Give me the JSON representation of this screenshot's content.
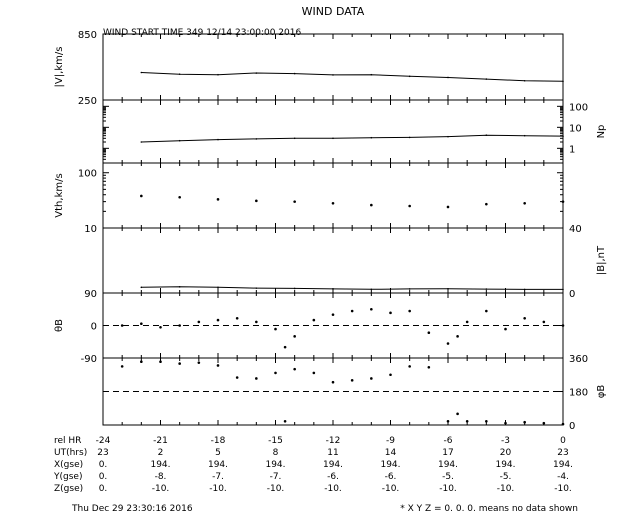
{
  "title": "WIND DATA",
  "start_label": "WIND START TIME 349 12/14 23:00:00 2016",
  "footer_date": "Thu Dec 29 23:30:16 2016",
  "footer_note": "* X Y Z = 0. 0. 0. means no data shown",
  "table": {
    "rows": [
      {
        "label": "rel HR",
        "values": [
          "-24",
          "-21",
          "-18",
          "-15",
          "-12",
          "-9",
          "-6",
          "-3",
          "0"
        ]
      },
      {
        "label": "UT(hrs)",
        "values": [
          "23",
          "2",
          "5",
          "8",
          "11",
          "14",
          "17",
          "20",
          "23"
        ]
      },
      {
        "label": "X(gse)",
        "values": [
          "0.",
          "194.",
          "194.",
          "194.",
          "194.",
          "194.",
          "194.",
          "194.",
          "194."
        ]
      },
      {
        "label": "Y(gse)",
        "values": [
          "0.",
          "-8.",
          "-7.",
          "-7.",
          "-6.",
          "-6.",
          "-5.",
          "-5.",
          "-4."
        ]
      },
      {
        "label": "Z(gse)",
        "values": [
          "0.",
          "-10.",
          "-10.",
          "-10.",
          "-10.",
          "-10.",
          "-10.",
          "-10.",
          "-10."
        ]
      }
    ]
  },
  "chart_data": [
    {
      "type": "line",
      "panel": "speed",
      "ylabel": "|V|,km/s",
      "ylim": [
        250,
        850
      ],
      "yticks": [
        "850",
        "250"
      ],
      "x": [
        -22,
        -20,
        -18,
        -16,
        -14,
        -12,
        -10,
        -8,
        -6,
        -4,
        -2,
        0
      ],
      "values": [
        500,
        485,
        480,
        495,
        490,
        478,
        480,
        465,
        455,
        440,
        425,
        420
      ]
    },
    {
      "type": "line",
      "panel": "density",
      "ylabel": "Np",
      "scale": "log",
      "ylim": [
        0.2,
        200
      ],
      "yticks": [
        "100",
        "10",
        "1"
      ],
      "x": [
        -22,
        -20,
        -18,
        -16,
        -14,
        -12,
        -10,
        -8,
        -6,
        -4,
        -2,
        0
      ],
      "values": [
        2.0,
        2.3,
        2.6,
        2.8,
        3.0,
        3.0,
        3.2,
        3.3,
        3.6,
        4.2,
        4.0,
        3.8
      ]
    },
    {
      "type": "scatter",
      "panel": "thermal_speed",
      "ylabel": "Vth,km/s",
      "scale": "log",
      "ylim": [
        10,
        150
      ],
      "yticks": [
        "100",
        "10"
      ],
      "x": [
        -22,
        -20,
        -18,
        -16,
        -14,
        -12,
        -10,
        -8,
        -6,
        -4,
        -2,
        0
      ],
      "values": [
        38,
        36,
        33,
        31,
        30,
        28,
        26,
        25,
        24,
        27,
        28,
        30
      ]
    },
    {
      "type": "line",
      "panel": "magnetic_field",
      "ylabel": "|B|,nT",
      "ylim": [
        0,
        40
      ],
      "yticks": [
        "40",
        "0"
      ],
      "x": [
        -22,
        -20,
        -18,
        -16,
        -14,
        -12,
        -10,
        -8,
        -6,
        -4,
        -2,
        0
      ],
      "values": [
        3.5,
        3.8,
        3.5,
        3.0,
        2.8,
        2.5,
        2.3,
        2.5,
        2.6,
        2.4,
        2.2,
        2.2
      ]
    },
    {
      "type": "scatter",
      "panel": "theta",
      "ylabel": "θB",
      "ylim": [
        -90,
        90
      ],
      "yticks": [
        "90",
        "0",
        "-90"
      ],
      "x": [
        -23,
        -22,
        -21,
        -20,
        -19,
        -18,
        -17,
        -16,
        -15,
        -14.5,
        -14,
        -13,
        -12,
        -11,
        -10,
        -9,
        -8,
        -7,
        -6,
        -5.5,
        -5,
        -4,
        -3,
        -2,
        -1,
        0
      ],
      "values": [
        0,
        5,
        -5,
        0,
        10,
        15,
        20,
        10,
        -10,
        -60,
        -30,
        15,
        30,
        40,
        45,
        35,
        40,
        -20,
        -50,
        -30,
        10,
        40,
        -10,
        20,
        10,
        0
      ]
    },
    {
      "type": "scatter",
      "panel": "phi",
      "ylabel": "φB",
      "ylim": [
        0,
        360
      ],
      "yticks": [
        "360",
        "180",
        "0"
      ],
      "x": [
        -23,
        -22,
        -21,
        -20,
        -19,
        -18,
        -17,
        -16,
        -15,
        -14.5,
        -14,
        -13,
        -12,
        -11,
        -10,
        -9,
        -8,
        -7,
        -6,
        -5.5,
        -5,
        -4,
        -3,
        -2,
        -1,
        0
      ],
      "values": [
        315,
        340,
        340,
        330,
        335,
        320,
        255,
        250,
        280,
        20,
        300,
        280,
        230,
        240,
        250,
        270,
        315,
        310,
        20,
        60,
        20,
        20,
        10,
        15,
        10,
        5
      ]
    }
  ]
}
